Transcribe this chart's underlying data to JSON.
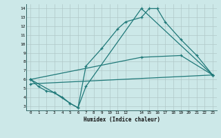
{
  "xlabel": "Humidex (Indice chaleur)",
  "bg_color": "#cce8e8",
  "grid_color": "#b0c8c8",
  "line_color": "#1e7878",
  "xlim": [
    -0.5,
    23.5
  ],
  "ylim": [
    2.5,
    14.5
  ],
  "xticks": [
    0,
    1,
    2,
    3,
    4,
    5,
    6,
    7,
    8,
    9,
    10,
    11,
    12,
    14,
    15,
    16,
    17,
    18,
    19,
    20,
    21,
    22,
    23
  ],
  "yticks": [
    3,
    4,
    5,
    6,
    7,
    8,
    9,
    10,
    11,
    12,
    13,
    14
  ],
  "line1": {
    "x": [
      0,
      1,
      2,
      3,
      4,
      5,
      6,
      7,
      9,
      11,
      12,
      14,
      15,
      16,
      17,
      19,
      21,
      23
    ],
    "y": [
      6.0,
      5.2,
      4.7,
      4.5,
      4.0,
      3.3,
      2.8,
      7.5,
      9.5,
      11.7,
      12.5,
      13.0,
      14.0,
      14.0,
      12.5,
      10.5,
      8.7,
      6.5
    ]
  },
  "line2": {
    "x": [
      0,
      3,
      5,
      6,
      7,
      14,
      23
    ],
    "y": [
      6.0,
      4.5,
      3.3,
      2.8,
      5.2,
      14.0,
      6.5
    ]
  },
  "line3": {
    "x": [
      0,
      14,
      19,
      23
    ],
    "y": [
      6.0,
      8.5,
      8.7,
      6.5
    ]
  },
  "line4": {
    "x": [
      0,
      23
    ],
    "y": [
      5.5,
      6.5
    ]
  }
}
